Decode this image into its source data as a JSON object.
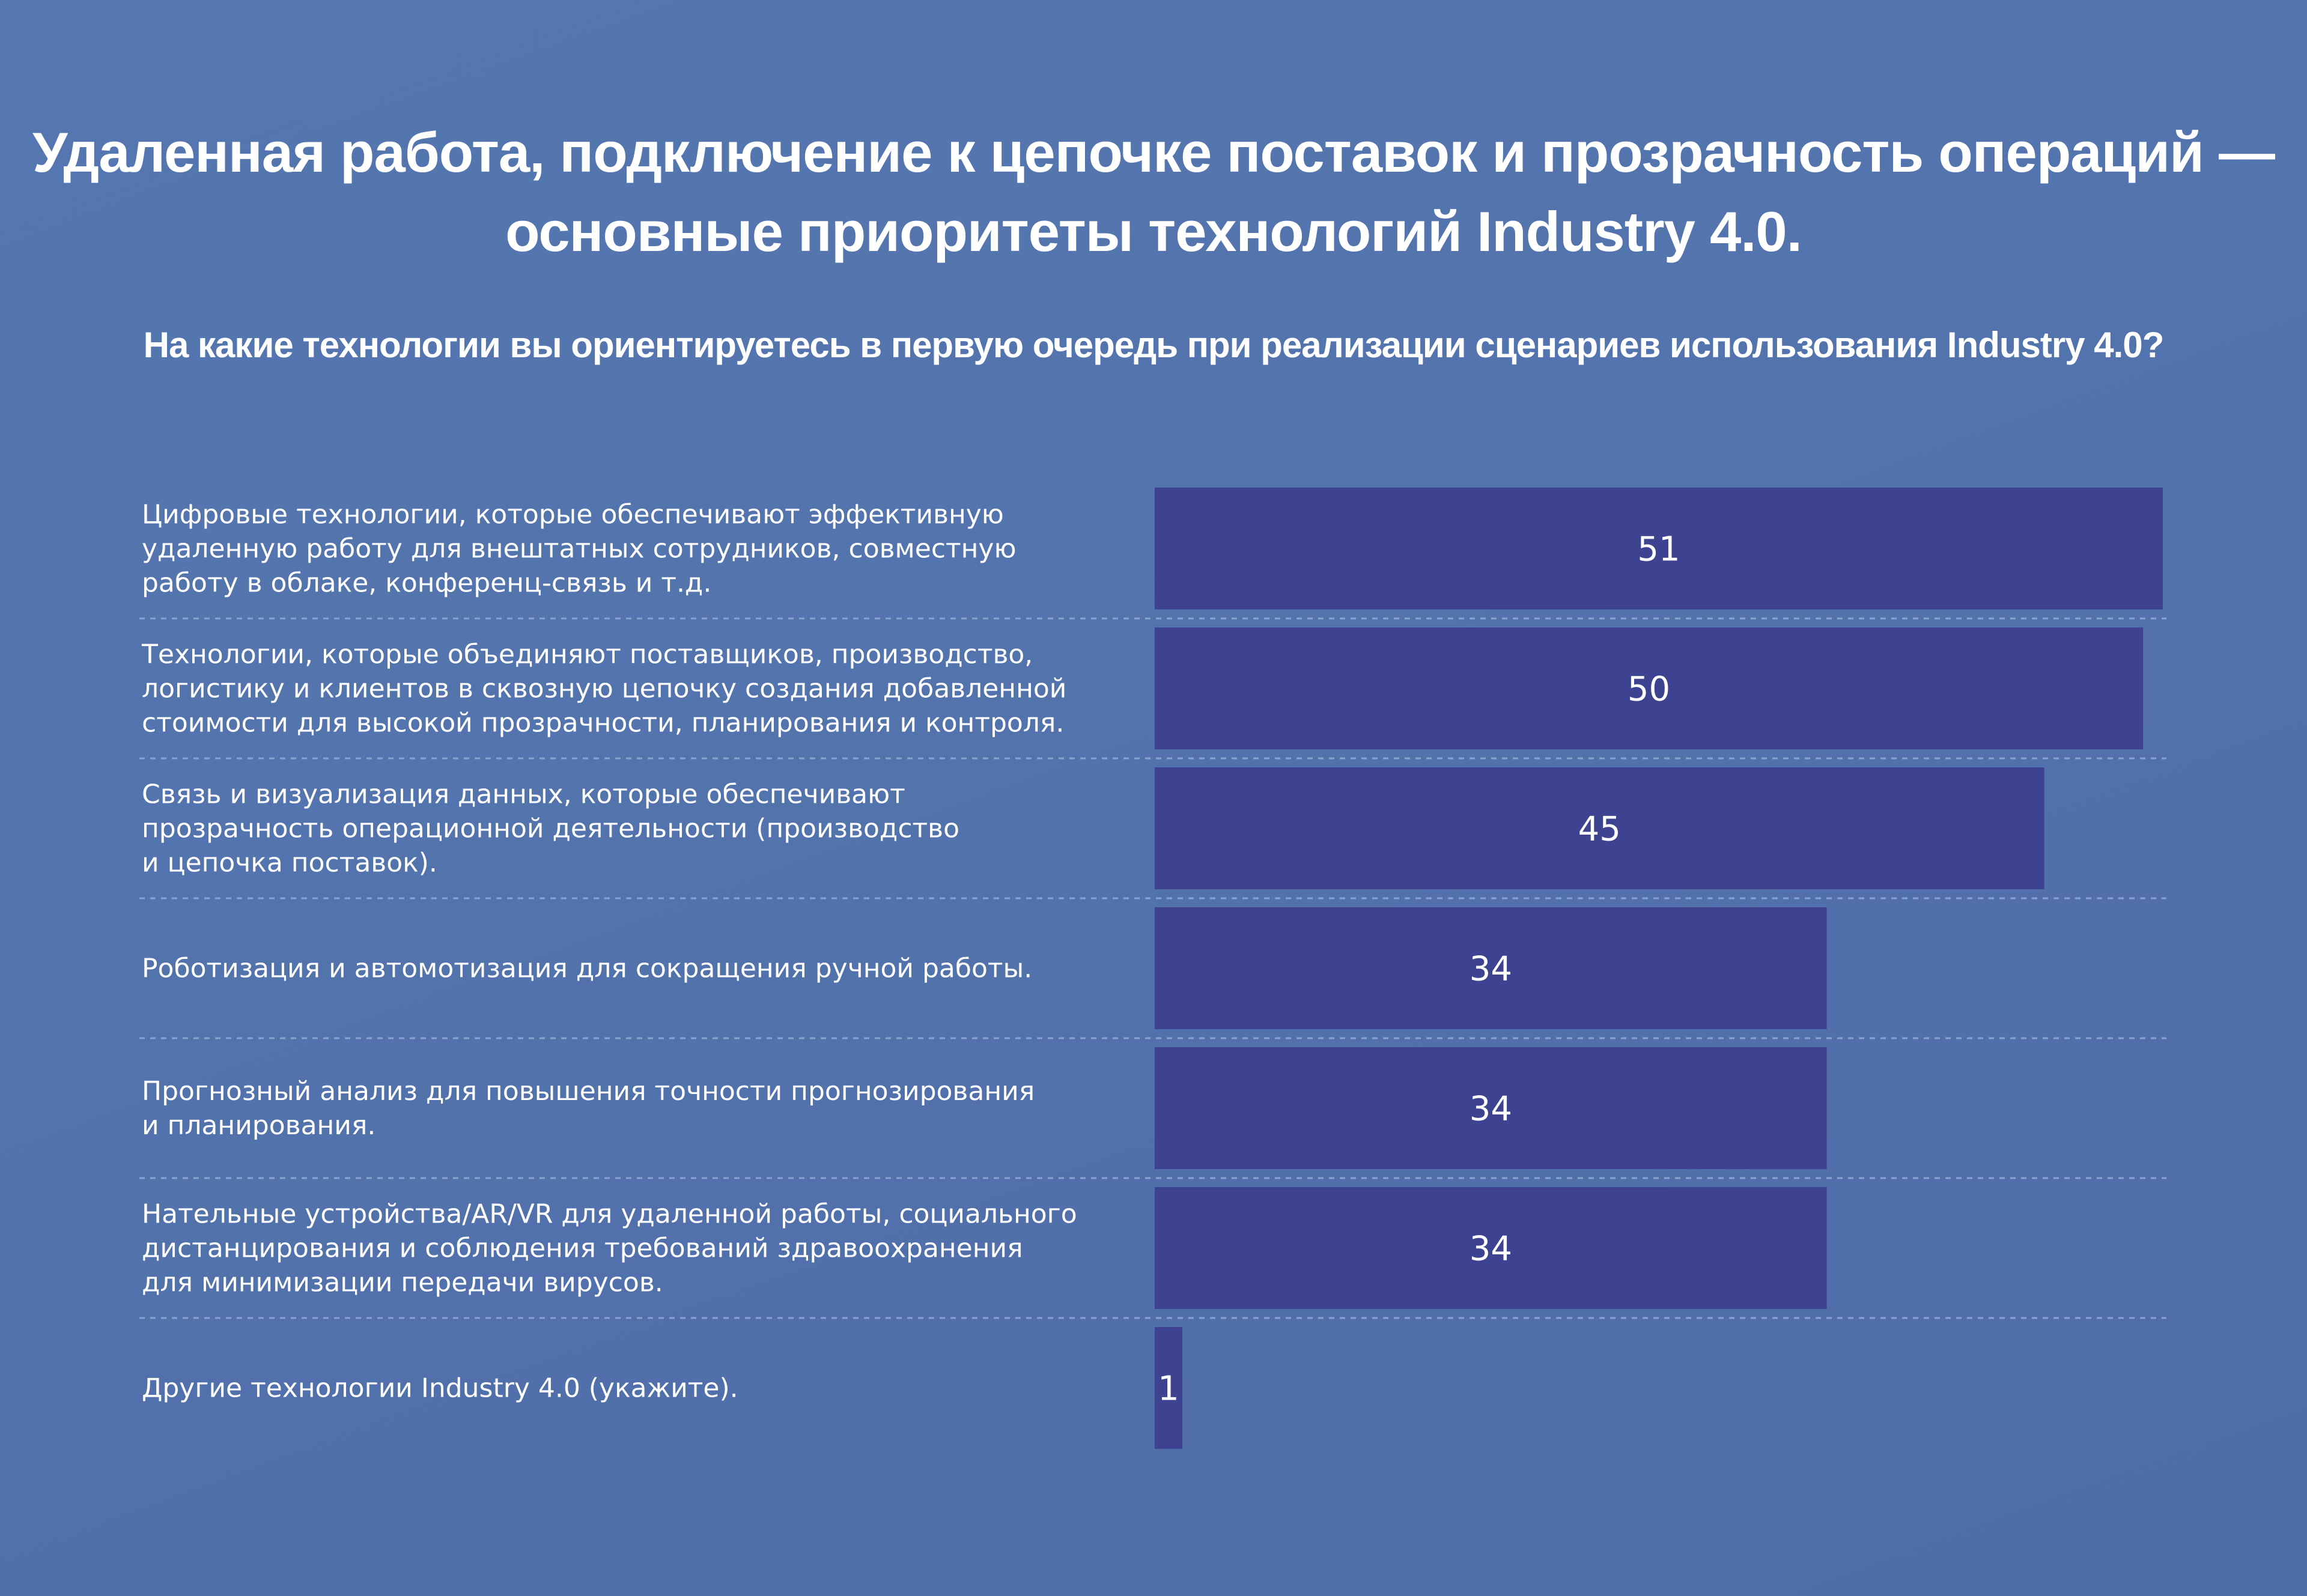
{
  "header": {
    "title_line1": "Удаленная работа, подключение к цепочке поставок и прозрачность операций —",
    "title_line2": "основные приоритеты технологий Industry 4.0.",
    "subtitle": "На какие технологии вы ориентируетесь в первую очередь при реализации сценариев использования Industry 4.0?"
  },
  "colors": {
    "background": "#5373ad",
    "bar": "#3d4390",
    "text": "#ffffff"
  },
  "chart_data": {
    "type": "bar",
    "orientation": "horizontal",
    "title": "Удаленная работа, подключение к цепочке поставок и прозрачность операций — основные приоритеты технологий Industry 4.0.",
    "subtitle": "На какие технологии вы ориентируетесь в первую очередь при реализации сценариев использования Industry 4.0?",
    "xlim": [
      0,
      51
    ],
    "categories": [
      [
        "Цифровые технологии, которые обеспечивают эффективную",
        "удаленную работу для внештатных сотрудников, совместную",
        "работу в облаке, конференц-связь и т.д."
      ],
      [
        "Технологии, которые объединяют поставщиков, производство,",
        "логистику и клиентов в сквозную цепочку создания добавленной",
        "стоимости для высокой прозрачности, планирования и контроля."
      ],
      [
        "Связь и визуализация данных, которые обеспечивают",
        "прозрачность операционной деятельности (производство",
        "и цепочка поставок)."
      ],
      [
        "Роботизация и автомотизация для сокращения ручной работы."
      ],
      [
        "Прогнозный анализ для повышения точности прогнозирования",
        "и планирования."
      ],
      [
        "Нательные устройства/AR/VR для удаленной работы, социального",
        "дистанцирования  и соблюдения требований здравоохранения",
        "для минимизации передачи вирусов."
      ],
      [
        "Другие технологии Industry 4.0 (укажите)."
      ]
    ],
    "values": [
      51,
      50,
      45,
      34,
      34,
      34,
      1
    ]
  }
}
